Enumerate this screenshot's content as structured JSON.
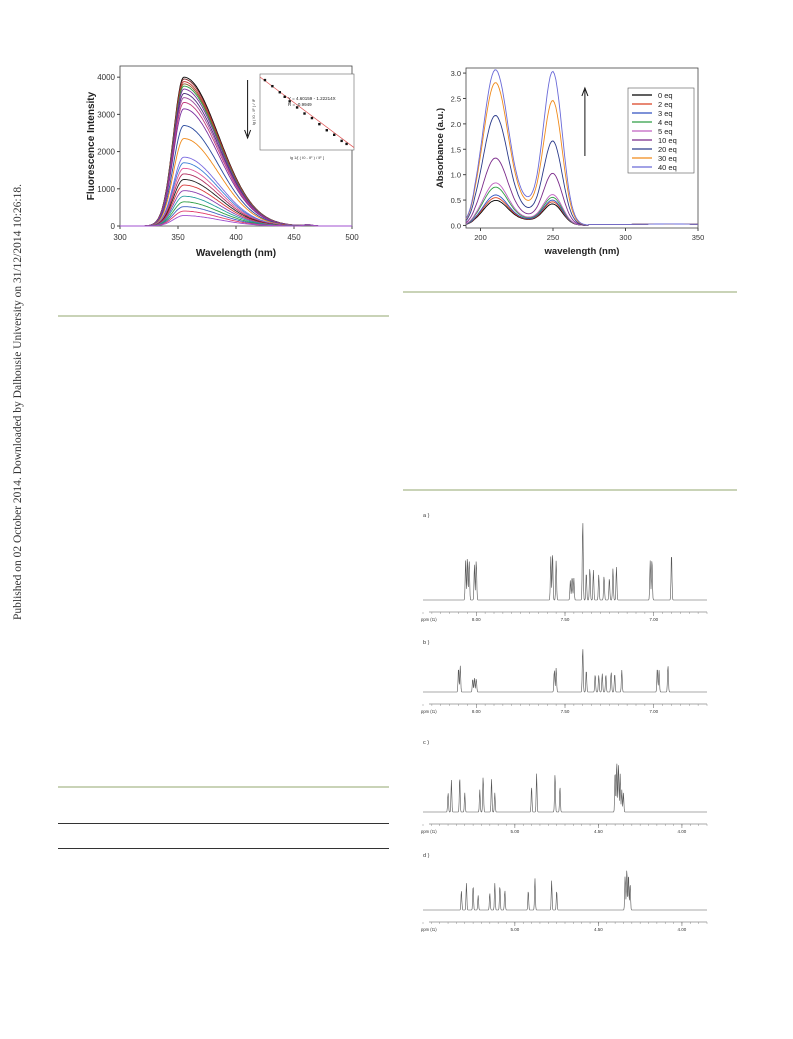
{
  "side_note": "Published on 02 October 2014. Downloaded by Dalhousie University on 31/12/2014 10:26:18.",
  "colors": {
    "rule_green": "#c9d3b7",
    "rule_dark": "#333333"
  },
  "chart_data": [
    {
      "type": "line",
      "xlabel": "Wavelength (nm)",
      "ylabel": "Fluorescence Intensity",
      "xlim": [
        300,
        500
      ],
      "ylim": [
        0,
        4300
      ],
      "x_ticks": [
        300,
        350,
        400,
        450,
        500
      ],
      "y_ticks": [
        0,
        1000,
        2000,
        3000,
        4000
      ],
      "peak_x": 355,
      "arrow": "down",
      "series_peaks": [
        4000,
        3950,
        3880,
        3820,
        3760,
        3680,
        3560,
        3450,
        3320,
        3150,
        2700,
        2350,
        1850,
        1700,
        1550,
        1400,
        1250,
        1100,
        950,
        800,
        650,
        520,
        400,
        280
      ],
      "series_colors": [
        "#000000",
        "#7a2a2a",
        "#c43131",
        "#8c5a2a",
        "#2f9e44",
        "#7a2f9e",
        "#4a2a7a",
        "#9e4a9e",
        "#c0397a",
        "#7a2f9e",
        "#2a4a9e",
        "#f08a1a",
        "#7a6ae0",
        "#3b7fd6",
        "#e05a9a",
        "#b03060",
        "#222222",
        "#d83a3a",
        "#8a3fb0",
        "#2aa0a0",
        "#2f9e44",
        "#4060c0",
        "#e03a6a",
        "#a050d0"
      ],
      "inset": {
        "type": "scatter",
        "equation": "Y = 4.60159 - 1.22214X",
        "r_value": "R = -0.9949",
        "xlabel": "lg 1/[ ( I0 - IF ) / IF ]",
        "ylabel": "lg ( I0 - IF ) / IF",
        "points": [
          [
            0.1,
            4.5
          ],
          [
            0.25,
            4.3
          ],
          [
            0.4,
            4.1
          ],
          [
            0.5,
            3.95
          ],
          [
            0.6,
            3.8
          ],
          [
            0.75,
            3.6
          ],
          [
            0.9,
            3.4
          ],
          [
            1.05,
            3.25
          ],
          [
            1.2,
            3.05
          ],
          [
            1.35,
            2.85
          ],
          [
            1.5,
            2.7
          ],
          [
            1.65,
            2.5
          ],
          [
            1.75,
            2.4
          ]
        ],
        "xlim": [
          0,
          1.9
        ],
        "ylim": [
          2.2,
          4.7
        ]
      }
    },
    {
      "type": "line",
      "xlabel": "wavelength (nm)",
      "ylabel": "Absorbance (a.u.)",
      "xlim": [
        190,
        350
      ],
      "ylim": [
        -0.05,
        3.1
      ],
      "x_ticks": [
        200,
        250,
        300,
        350
      ],
      "y_ticks": [
        0.0,
        0.5,
        1.0,
        1.5,
        2.0,
        2.5,
        3.0
      ],
      "y_tick_labels": [
        "0.0",
        "0.5",
        "1.0",
        "1.5",
        "2.0",
        "2.5",
        "3.0"
      ],
      "arrow": "up",
      "legend_position": "top-right",
      "series": [
        {
          "name": "0 eq",
          "color": "#000000",
          "peak1": 0.45,
          "valley": 0.28,
          "peak2": 0.38
        },
        {
          "name": "2 eq",
          "color": "#d94020",
          "peak1": 0.5,
          "valley": 0.3,
          "peak2": 0.42
        },
        {
          "name": "3 eq",
          "color": "#3050c0",
          "peak1": 0.55,
          "valley": 0.32,
          "peak2": 0.45
        },
        {
          "name": "4 eq",
          "color": "#2f9e44",
          "peak1": 0.7,
          "valley": 0.35,
          "peak2": 0.5
        },
        {
          "name": "5 eq",
          "color": "#c060c0",
          "peak1": 0.78,
          "valley": 0.38,
          "peak2": 0.55
        },
        {
          "name": "10 eq",
          "color": "#7a2a8a",
          "peak1": 1.25,
          "valley": 0.5,
          "peak2": 0.95
        },
        {
          "name": "20 eq",
          "color": "#2a3a8a",
          "peak1": 2.05,
          "valley": 0.75,
          "peak2": 1.55
        },
        {
          "name": "30 eq",
          "color": "#f08a1a",
          "peak1": 2.65,
          "valley": 1.05,
          "peak2": 2.3
        },
        {
          "name": "40 eq",
          "color": "#6a6ad8",
          "peak1": 2.88,
          "valley": 1.2,
          "peak2": 2.85
        }
      ]
    }
  ],
  "nmr_spectra": [
    {
      "label": "a )",
      "axis_unit": "ppm (t1)",
      "tick_labels": [
        "8.00",
        "7.50",
        "7.00"
      ],
      "tick_values": [
        8.0,
        7.5,
        7.0
      ],
      "ppm_range": [
        8.3,
        6.7
      ],
      "peaks": [
        [
          8.06,
          0.5
        ],
        [
          8.05,
          0.55
        ],
        [
          8.04,
          0.5
        ],
        [
          8.01,
          0.45
        ],
        [
          8.0,
          0.5
        ],
        [
          7.58,
          0.55
        ],
        [
          7.57,
          0.6
        ],
        [
          7.55,
          0.5
        ],
        [
          7.47,
          0.25
        ],
        [
          7.46,
          0.3
        ],
        [
          7.45,
          0.28
        ],
        [
          7.4,
          1.0
        ],
        [
          7.38,
          0.35
        ],
        [
          7.36,
          0.4
        ],
        [
          7.34,
          0.38
        ],
        [
          7.31,
          0.32
        ],
        [
          7.28,
          0.3
        ],
        [
          7.25,
          0.28
        ],
        [
          7.23,
          0.4
        ],
        [
          7.21,
          0.42
        ],
        [
          7.02,
          0.5
        ],
        [
          7.01,
          0.52
        ],
        [
          6.9,
          0.6
        ]
      ]
    },
    {
      "label": "b )",
      "axis_unit": "ppm (t1)",
      "tick_labels": [
        "8.00",
        "7.50",
        "7.00"
      ],
      "tick_values": [
        8.0,
        7.5,
        7.0
      ],
      "ppm_range": [
        8.3,
        6.7
      ],
      "peaks": [
        [
          8.1,
          0.55
        ],
        [
          8.09,
          0.6
        ],
        [
          8.02,
          0.3
        ],
        [
          8.01,
          0.32
        ],
        [
          8.0,
          0.3
        ],
        [
          7.56,
          0.5
        ],
        [
          7.55,
          0.55
        ],
        [
          7.4,
          1.0
        ],
        [
          7.38,
          0.5
        ],
        [
          7.33,
          0.4
        ],
        [
          7.31,
          0.38
        ],
        [
          7.29,
          0.42
        ],
        [
          7.27,
          0.4
        ],
        [
          7.24,
          0.45
        ],
        [
          7.22,
          0.42
        ],
        [
          7.18,
          0.5
        ],
        [
          6.98,
          0.55
        ],
        [
          6.97,
          0.5
        ],
        [
          6.92,
          0.6
        ]
      ]
    },
    {
      "label": "c )",
      "axis_unit": "ppm (t1)",
      "tick_labels": [
        "5.00",
        "4.50",
        "4.00"
      ],
      "tick_values": [
        5.0,
        4.5,
        4.0
      ],
      "ppm_range": [
        5.55,
        3.85
      ],
      "peaks": [
        [
          5.4,
          0.3
        ],
        [
          5.38,
          0.5
        ],
        [
          5.33,
          0.55
        ],
        [
          5.3,
          0.3
        ],
        [
          5.21,
          0.35
        ],
        [
          5.19,
          0.55
        ],
        [
          5.14,
          0.52
        ],
        [
          5.12,
          0.3
        ],
        [
          4.9,
          0.4
        ],
        [
          4.87,
          0.6
        ],
        [
          4.76,
          0.6
        ],
        [
          4.73,
          0.4
        ],
        [
          4.4,
          0.65
        ],
        [
          4.39,
          0.8
        ],
        [
          4.38,
          0.75
        ],
        [
          4.37,
          0.6
        ],
        [
          4.36,
          0.35
        ],
        [
          4.35,
          0.3
        ]
      ]
    },
    {
      "label": "d )",
      "axis_unit": "ppm (t1)",
      "tick_labels": [
        "5.00",
        "4.50",
        "4.00"
      ],
      "tick_values": [
        5.0,
        4.5,
        4.0
      ],
      "ppm_range": [
        5.55,
        3.85
      ],
      "peaks": [
        [
          5.32,
          0.4
        ],
        [
          5.29,
          0.55
        ],
        [
          5.25,
          0.5
        ],
        [
          5.22,
          0.3
        ],
        [
          5.15,
          0.35
        ],
        [
          5.12,
          0.55
        ],
        [
          5.09,
          0.5
        ],
        [
          5.06,
          0.4
        ],
        [
          4.92,
          0.4
        ],
        [
          4.88,
          0.65
        ],
        [
          4.78,
          0.6
        ],
        [
          4.75,
          0.4
        ],
        [
          4.34,
          0.7
        ],
        [
          4.33,
          0.85
        ],
        [
          4.32,
          0.75
        ],
        [
          4.31,
          0.55
        ]
      ]
    }
  ]
}
